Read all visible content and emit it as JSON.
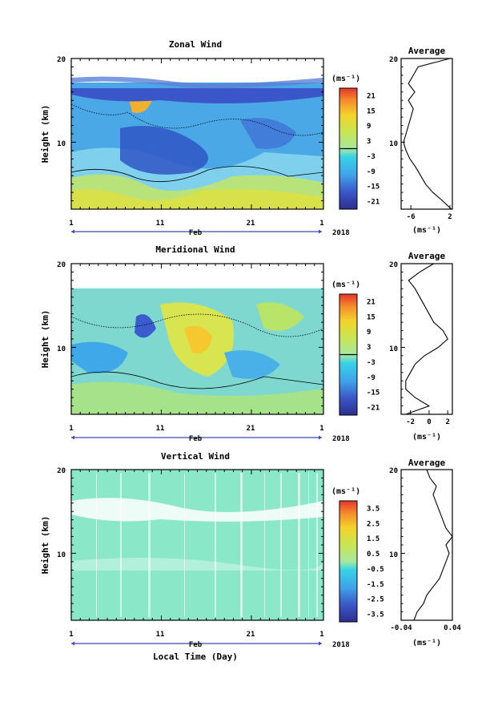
{
  "figure": {
    "xlabel": "Local Time (Day)"
  },
  "chart_data": [
    {
      "type": "heatmap",
      "title": "Zonal Wind",
      "ylabel": "Height (km)",
      "ylim": [
        2,
        20
      ],
      "yticks": [
        "10",
        "20"
      ],
      "x_tick_labels": [
        "1",
        "11",
        "21",
        "1"
      ],
      "month_label": "Feb",
      "year_label": "2018",
      "colorbar": {
        "unit": "(ms⁻¹)",
        "range": [
          -24,
          24
        ],
        "tick_labels": [
          "21",
          "15",
          "9",
          "3",
          "-3",
          "-9",
          "-15",
          "-21"
        ],
        "tick_values": [
          21,
          15,
          9,
          3,
          -3,
          -9,
          -15,
          -21
        ]
      },
      "profile": {
        "title": "Average",
        "xlim": [
          -8,
          2.5
        ],
        "xtick_labels": [
          "-6",
          "2"
        ],
        "xtick_values": [
          -6,
          2
        ],
        "xunit": "(ms⁻¹)",
        "yticks": [
          "10",
          "20"
        ],
        "height": [
          2,
          3,
          4,
          5,
          6,
          7,
          8,
          9,
          10,
          11,
          12,
          13,
          14,
          15,
          16,
          17,
          18,
          19,
          20
        ],
        "values": [
          2.3,
          0.5,
          -1.5,
          -3.0,
          -4.0,
          -5.0,
          -6.2,
          -7.0,
          -7.5,
          -7.0,
          -6.5,
          -6.0,
          -5.5,
          -6.5,
          -5.2,
          -6.5,
          -5.5,
          -4.5,
          2.0
        ]
      }
    },
    {
      "type": "heatmap",
      "title": "Meridional Wind",
      "ylabel": "Height (km)",
      "ylim": [
        2,
        20
      ],
      "yticks": [
        "10",
        "20"
      ],
      "x_tick_labels": [
        "1",
        "11",
        "21",
        "1"
      ],
      "month_label": "Feb",
      "year_label": "2018",
      "colorbar": {
        "unit": "(ms⁻¹)",
        "range": [
          -24,
          24
        ],
        "tick_labels": [
          "21",
          "15",
          "9",
          "3",
          "-3",
          "-9",
          "-15",
          "-21"
        ],
        "tick_values": [
          21,
          15,
          9,
          3,
          -3,
          -9,
          -15,
          -21
        ]
      },
      "profile": {
        "title": "Average",
        "xlim": [
          -3,
          2.5
        ],
        "xtick_labels": [
          "-2",
          "0",
          "2"
        ],
        "xtick_values": [
          -2,
          0,
          2
        ],
        "xunit": "(ms⁻¹)",
        "yticks": [
          "10",
          "20"
        ],
        "height": [
          2,
          3,
          4,
          5,
          6,
          7,
          8,
          9,
          10,
          11,
          12,
          13,
          14,
          15,
          16,
          17,
          18,
          19,
          20
        ],
        "values": [
          -2.5,
          0.0,
          -1.5,
          -2.5,
          -2.5,
          -2.0,
          -1.5,
          -0.5,
          1.0,
          2.0,
          1.5,
          0.5,
          0.0,
          -0.5,
          -1.0,
          -1.5,
          -2.2,
          -1.0,
          0.5
        ]
      }
    },
    {
      "type": "heatmap",
      "title": "Vertical Wind",
      "ylabel": "Height (km)",
      "ylim": [
        2,
        20
      ],
      "yticks": [
        "10",
        "20"
      ],
      "x_tick_labels": [
        "1",
        "11",
        "21",
        "1"
      ],
      "month_label": "Feb",
      "year_label": "2018",
      "colorbar": {
        "unit": "(ms⁻¹)",
        "range": [
          -4,
          4
        ],
        "tick_labels": [
          "3.5",
          "2.5",
          "1.5",
          "0.5",
          "-0.5",
          "-1.5",
          "-2.5",
          "-3.5"
        ],
        "tick_values": [
          3.5,
          2.5,
          1.5,
          0.5,
          -0.5,
          -1.5,
          -2.5,
          -3.5
        ]
      },
      "profile": {
        "title": "Average",
        "xlim": [
          -0.04,
          0.04
        ],
        "xtick_labels": [
          "-0.04",
          "0.04"
        ],
        "xtick_values": [
          -0.04,
          0.04
        ],
        "xunit": "(ms⁻¹)",
        "yticks": [
          "10",
          "20"
        ],
        "height": [
          2,
          3,
          4,
          5,
          6,
          7,
          8,
          9,
          10,
          11,
          12,
          13,
          14,
          15,
          16,
          17,
          18,
          19,
          20
        ],
        "values": [
          -0.02,
          -0.015,
          -0.005,
          0.0,
          0.01,
          0.02,
          0.025,
          0.03,
          0.035,
          0.03,
          0.04,
          0.03,
          0.025,
          0.02,
          0.015,
          0.01,
          0.015,
          0.005,
          0.0
        ]
      }
    }
  ]
}
